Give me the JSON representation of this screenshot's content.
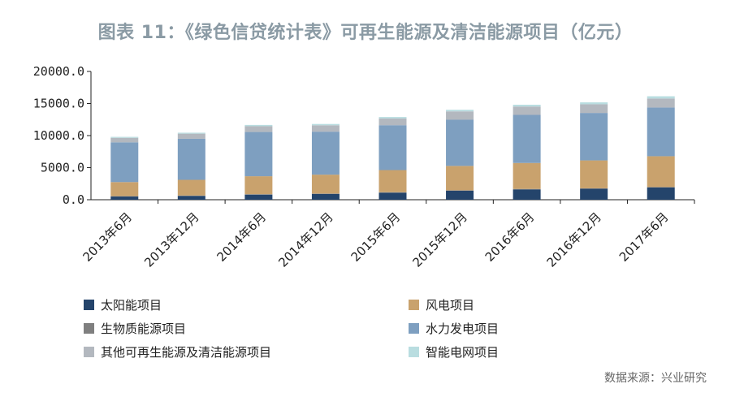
{
  "title": "图表 11：《绿色信贷统计表》可再生能源及清洁能源项目（亿元）",
  "source": "数据来源：兴业研究",
  "chart_data": {
    "type": "bar",
    "stacked": true,
    "categories": [
      "2013年6月",
      "2013年12月",
      "2014年6月",
      "2014年12月",
      "2015年6月",
      "2015年12月",
      "2016年6月",
      "2016年12月",
      "2017年6月"
    ],
    "y_ticks": [
      "0.0",
      "5000.0",
      "10000.0",
      "15000.0",
      "20000.0"
    ],
    "ylim": [
      0,
      20000
    ],
    "legend_position": "bottom",
    "series": [
      {
        "name": "太阳能项目",
        "color": "#24446b",
        "values": [
          500,
          600,
          800,
          900,
          1100,
          1400,
          1600,
          1700,
          1900
        ]
      },
      {
        "name": "生物质能源项目",
        "color": "#7f7f7f",
        "values": [
          50,
          50,
          60,
          60,
          70,
          70,
          80,
          80,
          80
        ]
      },
      {
        "name": "风电项目",
        "color": "#c9a26d",
        "values": [
          2200,
          2450,
          2800,
          2950,
          3450,
          3800,
          4050,
          4350,
          4800
        ]
      },
      {
        "name": "水力发电项目",
        "color": "#7e9fc0",
        "values": [
          6200,
          6400,
          6900,
          6700,
          7000,
          7200,
          7500,
          7400,
          7600
        ]
      },
      {
        "name": "其他可再生能源及清洁能源项目",
        "color": "#b3b8bf",
        "values": [
          700,
          800,
          900,
          1000,
          1050,
          1300,
          1300,
          1350,
          1400
        ]
      },
      {
        "name": "智能电网项目",
        "color": "#b9dde0",
        "values": [
          150,
          150,
          200,
          200,
          230,
          250,
          280,
          300,
          350
        ]
      }
    ]
  }
}
